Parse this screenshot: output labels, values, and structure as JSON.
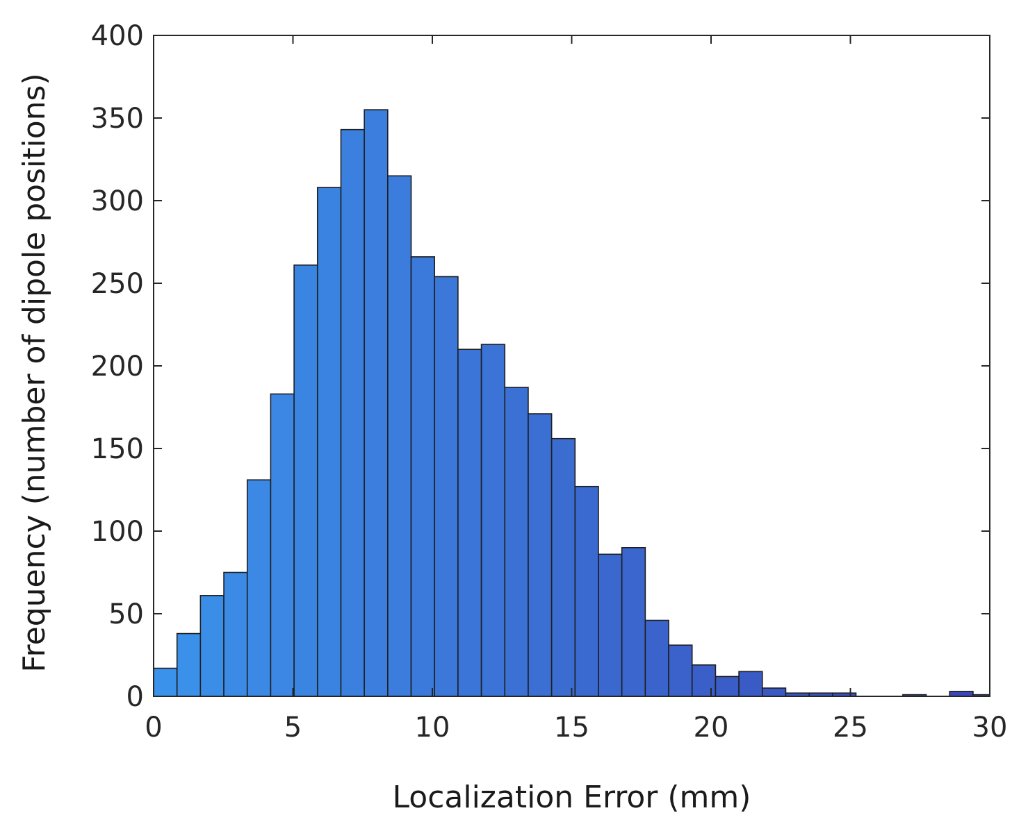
{
  "chart_data": {
    "type": "bar",
    "xlabel": "Localization Error (mm)",
    "ylabel": "Frequency (number of dipole positions)",
    "xlim": [
      0,
      30
    ],
    "ylim": [
      0,
      400
    ],
    "x_ticks": [
      "0",
      "5",
      "10",
      "15",
      "20",
      "25",
      "30"
    ],
    "y_ticks": [
      "0",
      "50",
      "100",
      "150",
      "200",
      "250",
      "300",
      "350",
      "400"
    ],
    "bin_edges": [
      0.0,
      0.84,
      1.68,
      2.52,
      3.36,
      4.2,
      5.04,
      5.88,
      6.72,
      7.56,
      8.4,
      9.24,
      10.08,
      10.92,
      11.76,
      12.6,
      13.44,
      14.28,
      15.12,
      15.96,
      16.8,
      17.64,
      18.48,
      19.32,
      20.16,
      21.0,
      21.84,
      22.68,
      23.52,
      24.36,
      25.2,
      26.04,
      26.88,
      27.72,
      28.56,
      29.4,
      30.0
    ],
    "values": [
      17,
      38,
      61,
      75,
      131,
      183,
      261,
      308,
      343,
      355,
      315,
      266,
      254,
      210,
      213,
      187,
      171,
      156,
      127,
      86,
      90,
      46,
      31,
      19,
      12,
      15,
      5,
      2,
      2,
      2,
      0,
      0,
      1,
      0,
      3,
      1
    ],
    "grid": false,
    "colors": {
      "bar_start": "#3b92eb",
      "bar_end": "#3a45b6",
      "bar_edge": "#1e1e1e",
      "axis": "#262626"
    }
  }
}
